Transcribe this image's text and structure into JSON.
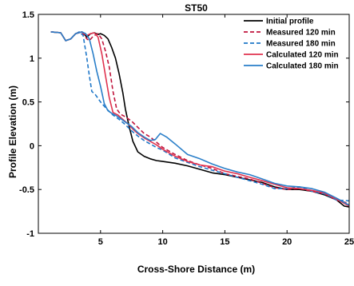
{
  "chart_data": {
    "type": "line",
    "title": "ST50",
    "xlabel": "Cross-Shore Distance (m)",
    "ylabel": "Profile Elevation (m)",
    "xlim": [
      0,
      25
    ],
    "ylim": [
      -1,
      1.5
    ],
    "x_ticks": [
      5,
      10,
      15,
      20,
      25
    ],
    "y_ticks": [
      -1,
      -0.5,
      0,
      0.5,
      1,
      1.5
    ],
    "x_tick_labels": [
      "5",
      "10",
      "15",
      "20",
      "25"
    ],
    "y_tick_labels": [
      "-1",
      "-0.5",
      "0",
      "0.5",
      "1",
      "1.5"
    ],
    "grid": false,
    "legend_position": "top-right",
    "series": [
      {
        "name": "Initial profile",
        "color": "#000000",
        "dash": "solid",
        "x": [
          1.0,
          1.8,
          2.2,
          2.6,
          3.0,
          3.5,
          3.9,
          4.2,
          4.5,
          4.8,
          5.0,
          5.3,
          5.6,
          5.9,
          6.2,
          6.5,
          6.8,
          7.0,
          7.3,
          7.6,
          8.0,
          8.5,
          9.0,
          9.5,
          10.0,
          11.0,
          12.0,
          13.0,
          14.0,
          15.0,
          16.0,
          17.0,
          18.0,
          19.0,
          20.0,
          21.0,
          22.0,
          23.0,
          24.0,
          24.6,
          25.0
        ],
        "y": [
          1.3,
          1.29,
          1.2,
          1.22,
          1.28,
          1.3,
          1.24,
          1.28,
          1.29,
          1.27,
          1.28,
          1.26,
          1.22,
          1.12,
          1.0,
          0.82,
          0.6,
          0.42,
          0.22,
          0.05,
          -0.07,
          -0.12,
          -0.15,
          -0.17,
          -0.18,
          -0.2,
          -0.23,
          -0.27,
          -0.31,
          -0.33,
          -0.36,
          -0.39,
          -0.42,
          -0.47,
          -0.5,
          -0.5,
          -0.52,
          -0.56,
          -0.62,
          -0.69,
          -0.7
        ]
      },
      {
        "name": "Measured 120 min",
        "color": "#c0143c",
        "dash": "dashed",
        "x": [
          1.0,
          1.8,
          2.2,
          2.6,
          3.0,
          3.5,
          3.9,
          4.1,
          4.4,
          4.8,
          5.1,
          5.4,
          5.7,
          6.0,
          6.3,
          6.6,
          7.0,
          7.5,
          8.0,
          8.5,
          9.0,
          9.5,
          10.0,
          11.0,
          12.0,
          13.0,
          14.0,
          15.0,
          16.0,
          17.0,
          18.0,
          19.0,
          20.0,
          21.0,
          22.0,
          23.0,
          24.0,
          25.0
        ],
        "y": [
          1.3,
          1.29,
          1.2,
          1.22,
          1.28,
          1.3,
          1.22,
          1.2,
          1.25,
          1.28,
          1.22,
          1.08,
          0.9,
          0.62,
          0.42,
          0.36,
          0.33,
          0.28,
          0.21,
          0.14,
          0.1,
          0.04,
          -0.02,
          -0.1,
          -0.17,
          -0.22,
          -0.26,
          -0.32,
          -0.35,
          -0.38,
          -0.43,
          -0.48,
          -0.5,
          -0.49,
          -0.52,
          -0.55,
          -0.62,
          -0.66
        ]
      },
      {
        "name": "Measured 180 min",
        "color": "#1f77c8",
        "dash": "dashed",
        "x": [
          1.0,
          1.8,
          2.2,
          2.6,
          3.0,
          3.3,
          3.6,
          3.9,
          4.1,
          4.3,
          4.6,
          5.0,
          5.5,
          6.0,
          6.5,
          7.0,
          7.5,
          8.0,
          8.5,
          9.0,
          9.5,
          10.0,
          11.0,
          12.0,
          13.0,
          14.0,
          15.0,
          16.0,
          17.0,
          18.0,
          19.0,
          20.0,
          21.0,
          22.0,
          23.0,
          24.0,
          25.0
        ],
        "y": [
          1.3,
          1.29,
          1.2,
          1.22,
          1.28,
          1.3,
          1.26,
          1.0,
          0.8,
          0.62,
          0.58,
          0.5,
          0.42,
          0.35,
          0.3,
          0.24,
          0.17,
          0.11,
          0.06,
          0.02,
          -0.02,
          -0.05,
          -0.14,
          -0.19,
          -0.24,
          -0.28,
          -0.32,
          -0.36,
          -0.4,
          -0.44,
          -0.49,
          -0.49,
          -0.47,
          -0.52,
          -0.55,
          -0.62,
          -0.63
        ]
      },
      {
        "name": "Calculated 120 min",
        "color": "#e0334f",
        "dash": "solid",
        "x": [
          1.0,
          1.8,
          2.2,
          2.6,
          3.0,
          3.5,
          3.9,
          4.2,
          4.5,
          4.8,
          5.1,
          5.4,
          5.7,
          6.0,
          6.4,
          6.8,
          7.2,
          7.6,
          8.0,
          8.5,
          9.0,
          9.5,
          10.0,
          11.0,
          12.0,
          13.0,
          14.0,
          15.0,
          16.0,
          17.0,
          18.0,
          19.0,
          20.0,
          21.0,
          22.0,
          23.0,
          24.0,
          25.0
        ],
        "y": [
          1.3,
          1.29,
          1.2,
          1.22,
          1.28,
          1.3,
          1.26,
          1.28,
          1.29,
          1.24,
          1.05,
          0.8,
          0.55,
          0.38,
          0.35,
          0.3,
          0.25,
          0.19,
          0.14,
          0.09,
          0.05,
          0.01,
          -0.04,
          -0.12,
          -0.18,
          -0.22,
          -0.24,
          -0.29,
          -0.32,
          -0.36,
          -0.4,
          -0.44,
          -0.48,
          -0.49,
          -0.51,
          -0.54,
          -0.61,
          -0.69
        ]
      },
      {
        "name": "Calculated 180 min",
        "color": "#2a7fc9",
        "dash": "solid",
        "x": [
          1.0,
          1.8,
          2.2,
          2.6,
          3.0,
          3.5,
          3.8,
          4.1,
          4.4,
          4.7,
          5.0,
          5.3,
          5.6,
          5.9,
          6.3,
          6.7,
          7.0,
          7.5,
          8.0,
          8.5,
          9.0,
          9.4,
          9.8,
          10.3,
          11.0,
          12.0,
          13.0,
          14.0,
          15.0,
          16.0,
          17.0,
          18.0,
          19.0,
          20.0,
          21.0,
          22.0,
          23.0,
          24.0,
          25.0
        ],
        "y": [
          1.3,
          1.29,
          1.2,
          1.22,
          1.28,
          1.3,
          1.28,
          1.22,
          1.05,
          0.85,
          0.68,
          0.48,
          0.4,
          0.37,
          0.34,
          0.3,
          0.27,
          0.22,
          0.15,
          0.1,
          0.06,
          0.07,
          0.14,
          0.1,
          0.02,
          -0.1,
          -0.15,
          -0.21,
          -0.26,
          -0.3,
          -0.33,
          -0.38,
          -0.43,
          -0.46,
          -0.47,
          -0.49,
          -0.53,
          -0.6,
          -0.68
        ]
      }
    ]
  }
}
